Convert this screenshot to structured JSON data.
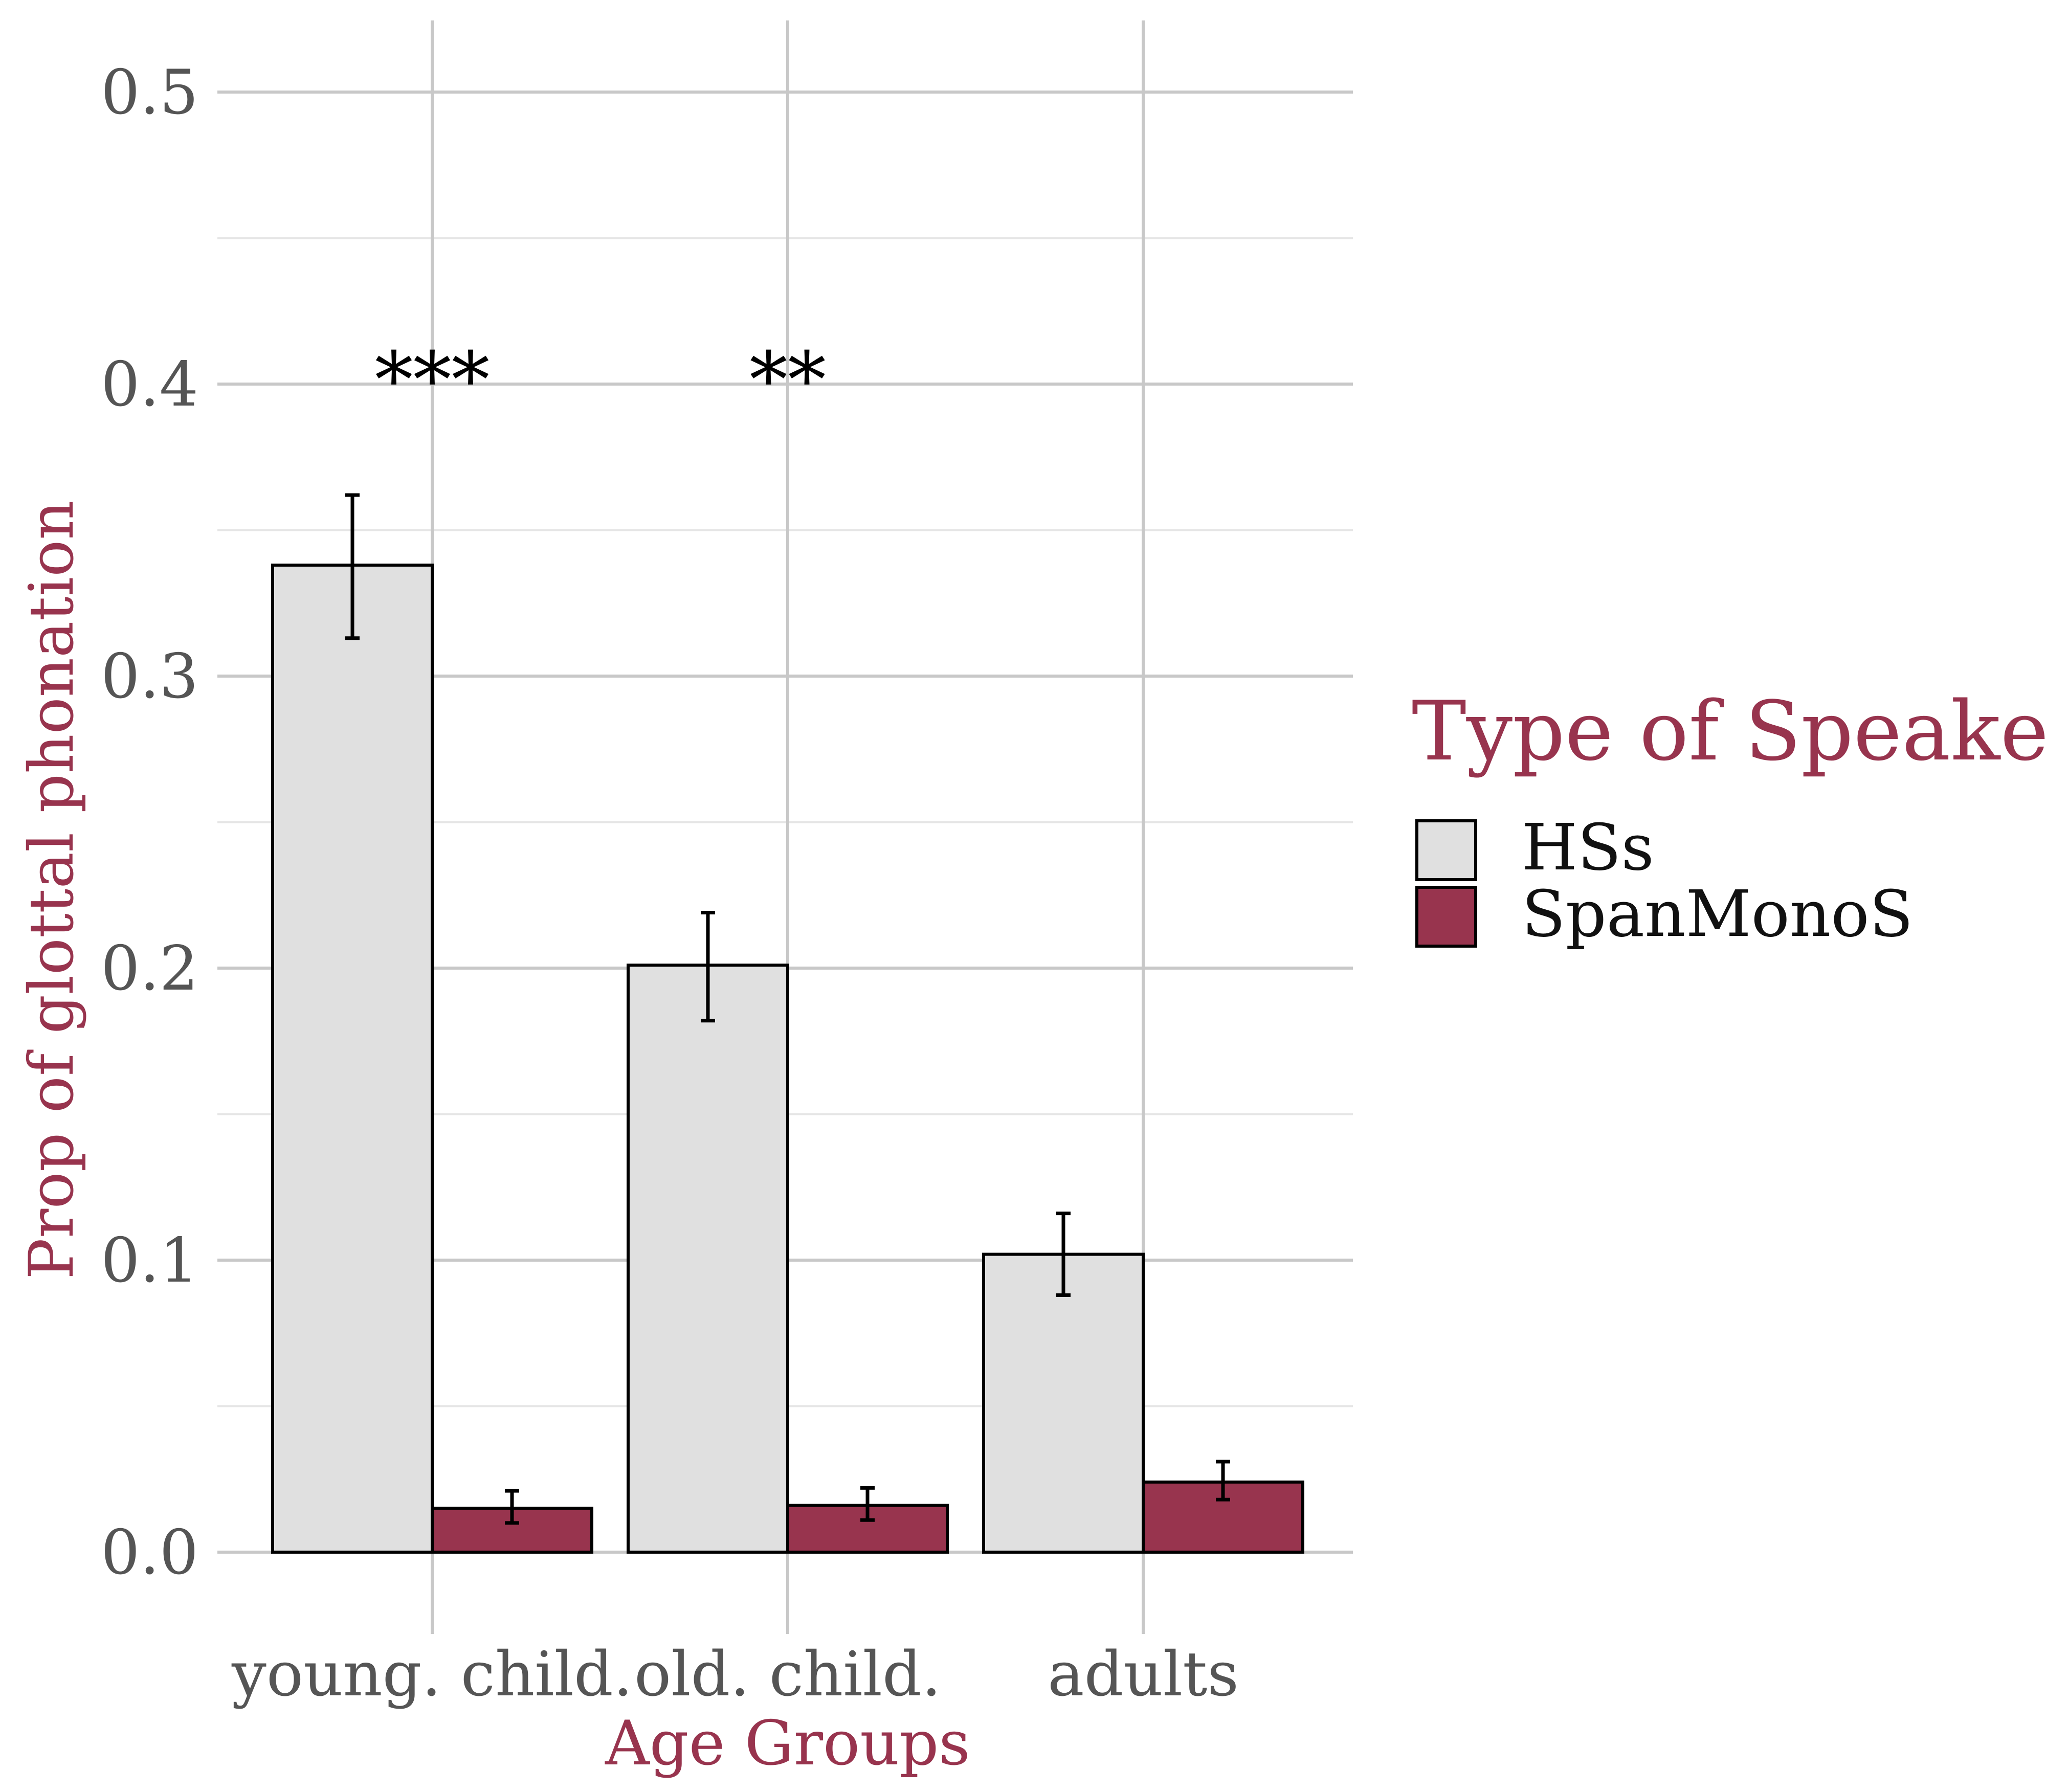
{
  "chart_data": {
    "type": "bar",
    "title": "",
    "xlabel": "Age Groups",
    "ylabel": "Prop of glottal phonation",
    "categories": [
      "young. child.",
      "old. child.",
      "adults"
    ],
    "ylim": [
      0,
      0.52
    ],
    "yticks": [
      0.0,
      0.1,
      0.2,
      0.3,
      0.4,
      0.5
    ],
    "ytick_labels": [
      "0.0",
      "0.1",
      "0.2",
      "0.3",
      "0.4",
      "0.5"
    ],
    "grid": true,
    "series": [
      {
        "name": "HSs",
        "color": "#E0E0E0",
        "values": [
          0.338,
          0.201,
          0.102
        ],
        "error_low": [
          0.313,
          0.182,
          0.088
        ],
        "error_high": [
          0.362,
          0.219,
          0.116
        ]
      },
      {
        "name": "SpanMonoS",
        "color": "#98344E",
        "values": [
          0.015,
          0.016,
          0.024
        ],
        "error_low": [
          0.01,
          0.011,
          0.018
        ],
        "error_high": [
          0.021,
          0.022,
          0.031
        ]
      }
    ],
    "annotations": [
      {
        "category": "young. child.",
        "text": "***"
      },
      {
        "category": "old. child.",
        "text": "**"
      }
    ],
    "legend": {
      "title": "Type of Speaker",
      "placement": "right"
    },
    "colors": {
      "accent": "#98344E",
      "tick_text": "#555555",
      "grid_major": "#C8C8C8",
      "grid_minor": "#E6E6E6",
      "bar_outline": "#000000"
    }
  }
}
